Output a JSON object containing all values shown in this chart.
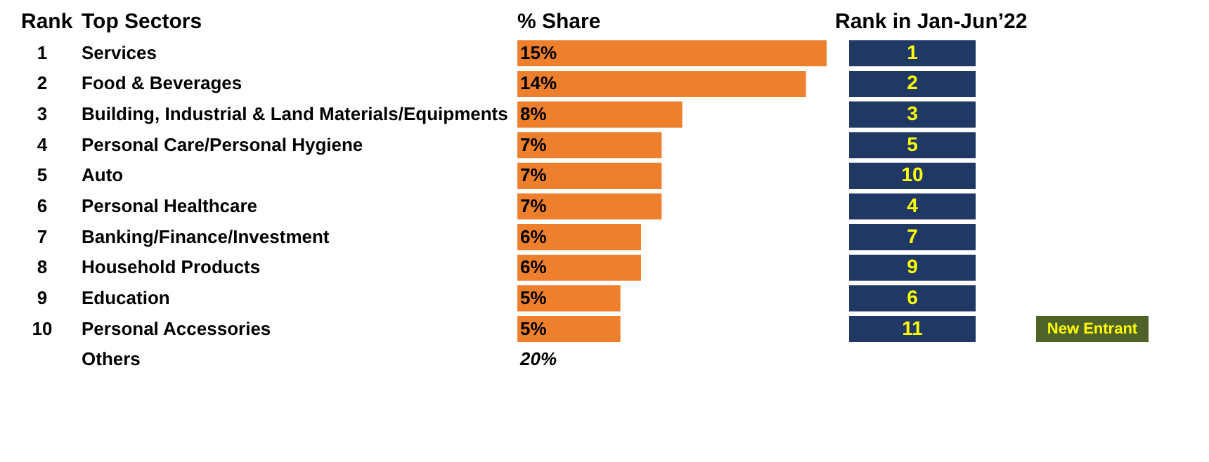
{
  "chart_data": {
    "type": "bar",
    "orientation": "horizontal",
    "categories": [
      "Services",
      "Food & Beverages",
      "Building, Industrial & Land Materials/Equipments",
      "Personal Care/Personal Hygiene",
      "Auto",
      "Personal Healthcare",
      "Banking/Finance/Investment",
      "Household Products",
      "Education",
      "Personal Accessories"
    ],
    "values": [
      15,
      14,
      8,
      7,
      7,
      7,
      6,
      6,
      5,
      5
    ],
    "value_labels": [
      "15%",
      "14%",
      "8%",
      "7%",
      "7%",
      "7%",
      "6%",
      "6%",
      "5%",
      "5%"
    ],
    "color": "#ee7f2d",
    "ylabel": "Top Sectors",
    "xlabel": "% Share",
    "y2label": "Rank in Jan-Jun’22",
    "annotations": [
      "1",
      "2",
      "3",
      "4",
      "5",
      "6",
      "7",
      "8",
      "9",
      "10",
      "1",
      "2",
      "3",
      "5",
      "10",
      "4",
      "7",
      "9",
      "6",
      "11",
      "New Entrant",
      "Rank",
      "Others",
      "20%"
    ]
  }
}
